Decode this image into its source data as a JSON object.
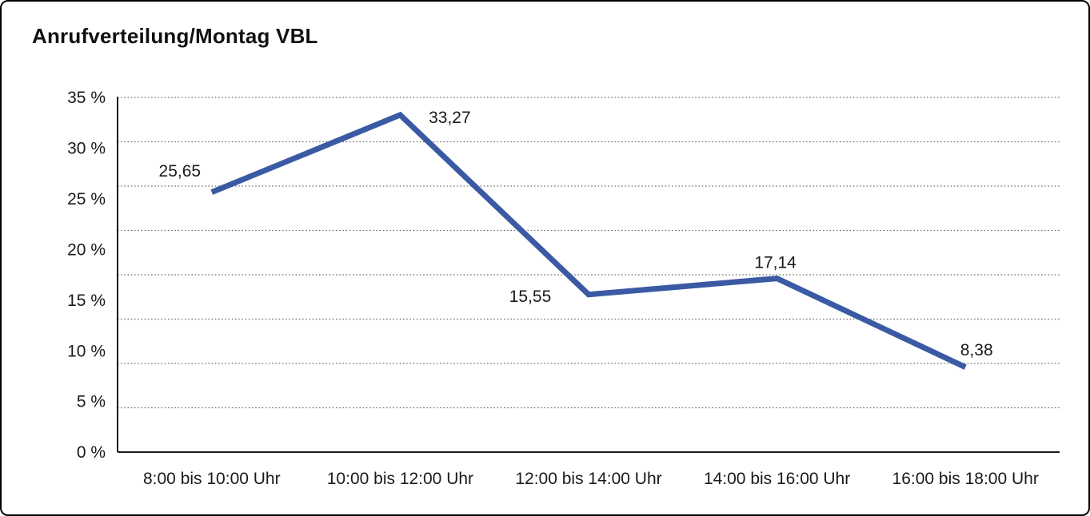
{
  "frame": {
    "title": "Anrufverteilung/Montag VBL"
  },
  "chart_data": {
    "type": "line",
    "title": "Anrufverteilung/Montag VBL",
    "categories": [
      "8:00 bis 10:00 Uhr",
      "10:00 bis 12:00 Uhr",
      "12:00 bis 14:00 Uhr",
      "14:00 bis 16:00 Uhr",
      "16:00 bis 18:00 Uhr"
    ],
    "series": [
      {
        "values": [
          25.65,
          33.27,
          15.55,
          17.14,
          8.38
        ],
        "point_labels": [
          "25,65",
          "33,27",
          "15,55",
          "17,14",
          "8,38"
        ]
      }
    ],
    "ylim": [
      0,
      35
    ],
    "ytick_step": 5,
    "ytick_labels": [
      "35 %",
      "30 %",
      "25 %",
      "20 %",
      "15 %",
      "10 %",
      "5 %",
      "0 %"
    ],
    "grid": "dotted-horizontal",
    "legend": "none",
    "line_color": "#3A5AA3",
    "axis_color": "#1a1a1a",
    "grid_color": "#6e6e6e",
    "decimal_separator": ","
  }
}
